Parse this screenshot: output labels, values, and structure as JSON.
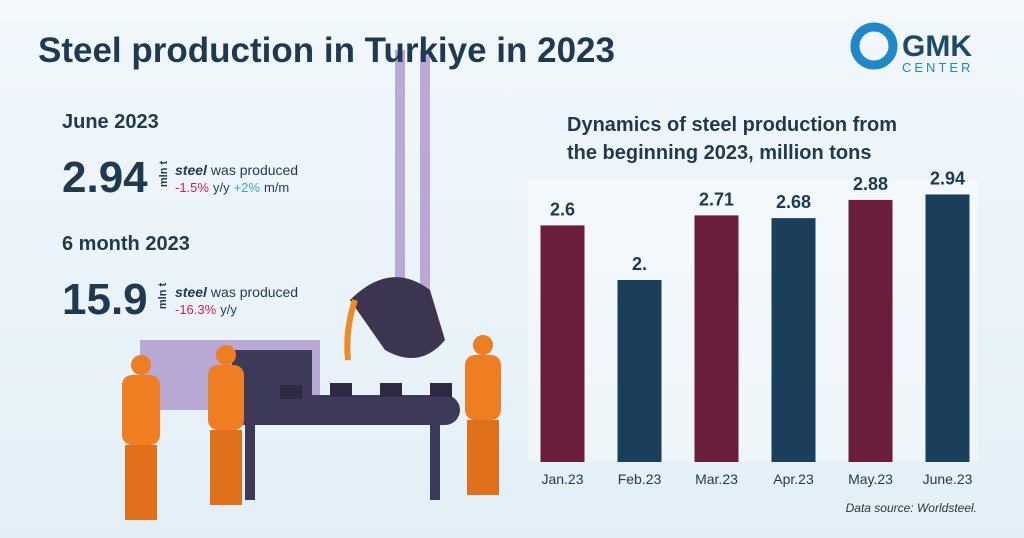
{
  "header": {
    "title": "Steel production in Turkiye in 2023",
    "logo_main": "GMK",
    "logo_sub": "CENTER"
  },
  "stats": [
    {
      "period": "June 2023",
      "value": "2.94",
      "unit": "mln t",
      "noun": "steel",
      "verb": "was produced",
      "change1": "-1.5%",
      "change1_unit": "y/y",
      "change2": "+2%",
      "change2_unit": "m/m"
    },
    {
      "period": "6 month 2023",
      "value": "15.9",
      "unit": "mln t",
      "noun": "steel",
      "verb": "was produced",
      "change1": "-16.3%",
      "change1_unit": "y/y"
    }
  ],
  "chart_data": {
    "type": "bar",
    "title": [
      "Dynamics of steel production from",
      "the beginning 2023, million tons"
    ],
    "categories": [
      "Jan.23",
      "Feb.23",
      "Mar.23",
      "Apr.23",
      "May.23",
      "June.23"
    ],
    "values": [
      2.6,
      2,
      2.71,
      2.68,
      2.88,
      2.94
    ],
    "value_labels": [
      "2.6",
      "2.",
      "2.71",
      "2.68",
      "2.88",
      "2.94"
    ],
    "colors": [
      "#6b1e3c",
      "#1b3f5a",
      "#6b1e3c",
      "#1b3f5a",
      "#6b1e3c",
      "#1b3f5a"
    ],
    "source": "Data source:  Worldsteel."
  }
}
